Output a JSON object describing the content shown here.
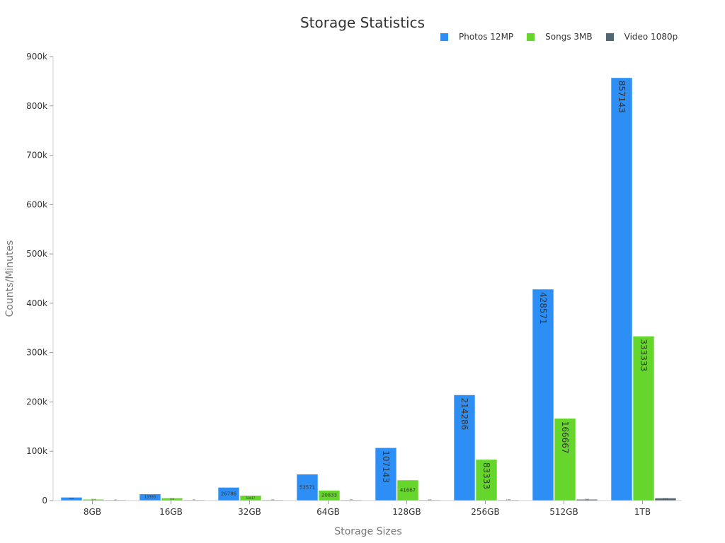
{
  "chart_data": {
    "type": "bar",
    "title": "Storage Statistics",
    "xlabel": "Storage Sizes",
    "ylabel": "Counts/Minutes",
    "categories": [
      "8GB",
      "16GB",
      "32GB",
      "64GB",
      "128GB",
      "256GB",
      "512GB",
      "1TB"
    ],
    "ylim": [
      0,
      900000
    ],
    "yticks": [
      0,
      100000,
      200000,
      300000,
      400000,
      500000,
      600000,
      700000,
      800000,
      900000
    ],
    "ytick_labels": [
      "0",
      "100k",
      "200k",
      "300k",
      "400k",
      "500k",
      "600k",
      "700k",
      "800k",
      "900k"
    ],
    "legend_position": "top-right",
    "grid": false,
    "series": [
      {
        "name": "Photos 12MP",
        "color": "#2d8ff5",
        "values": [
          6696,
          13393,
          26786,
          53571,
          107143,
          214286,
          428571,
          857143
        ],
        "labels": [
          "6696",
          "13393",
          "26786",
          "53571",
          "107143",
          "214286",
          "428571",
          "857143"
        ]
      },
      {
        "name": "Songs 3MB",
        "color": "#66d62d",
        "values": [
          2604,
          5208,
          10417,
          20833,
          41667,
          83333,
          166667,
          333333
        ],
        "labels": [
          "2604",
          "5208",
          "10417",
          "20833",
          "41667",
          "83333",
          "166667",
          "333333"
        ]
      },
      {
        "name": "Video 1080p",
        "color": "#4f6873",
        "values": [
          40,
          80,
          160,
          320,
          640,
          1280,
          2560,
          5120
        ],
        "labels": [
          "40",
          "80",
          "160",
          "320",
          "640",
          "1280",
          "2560",
          "5120"
        ]
      }
    ]
  }
}
